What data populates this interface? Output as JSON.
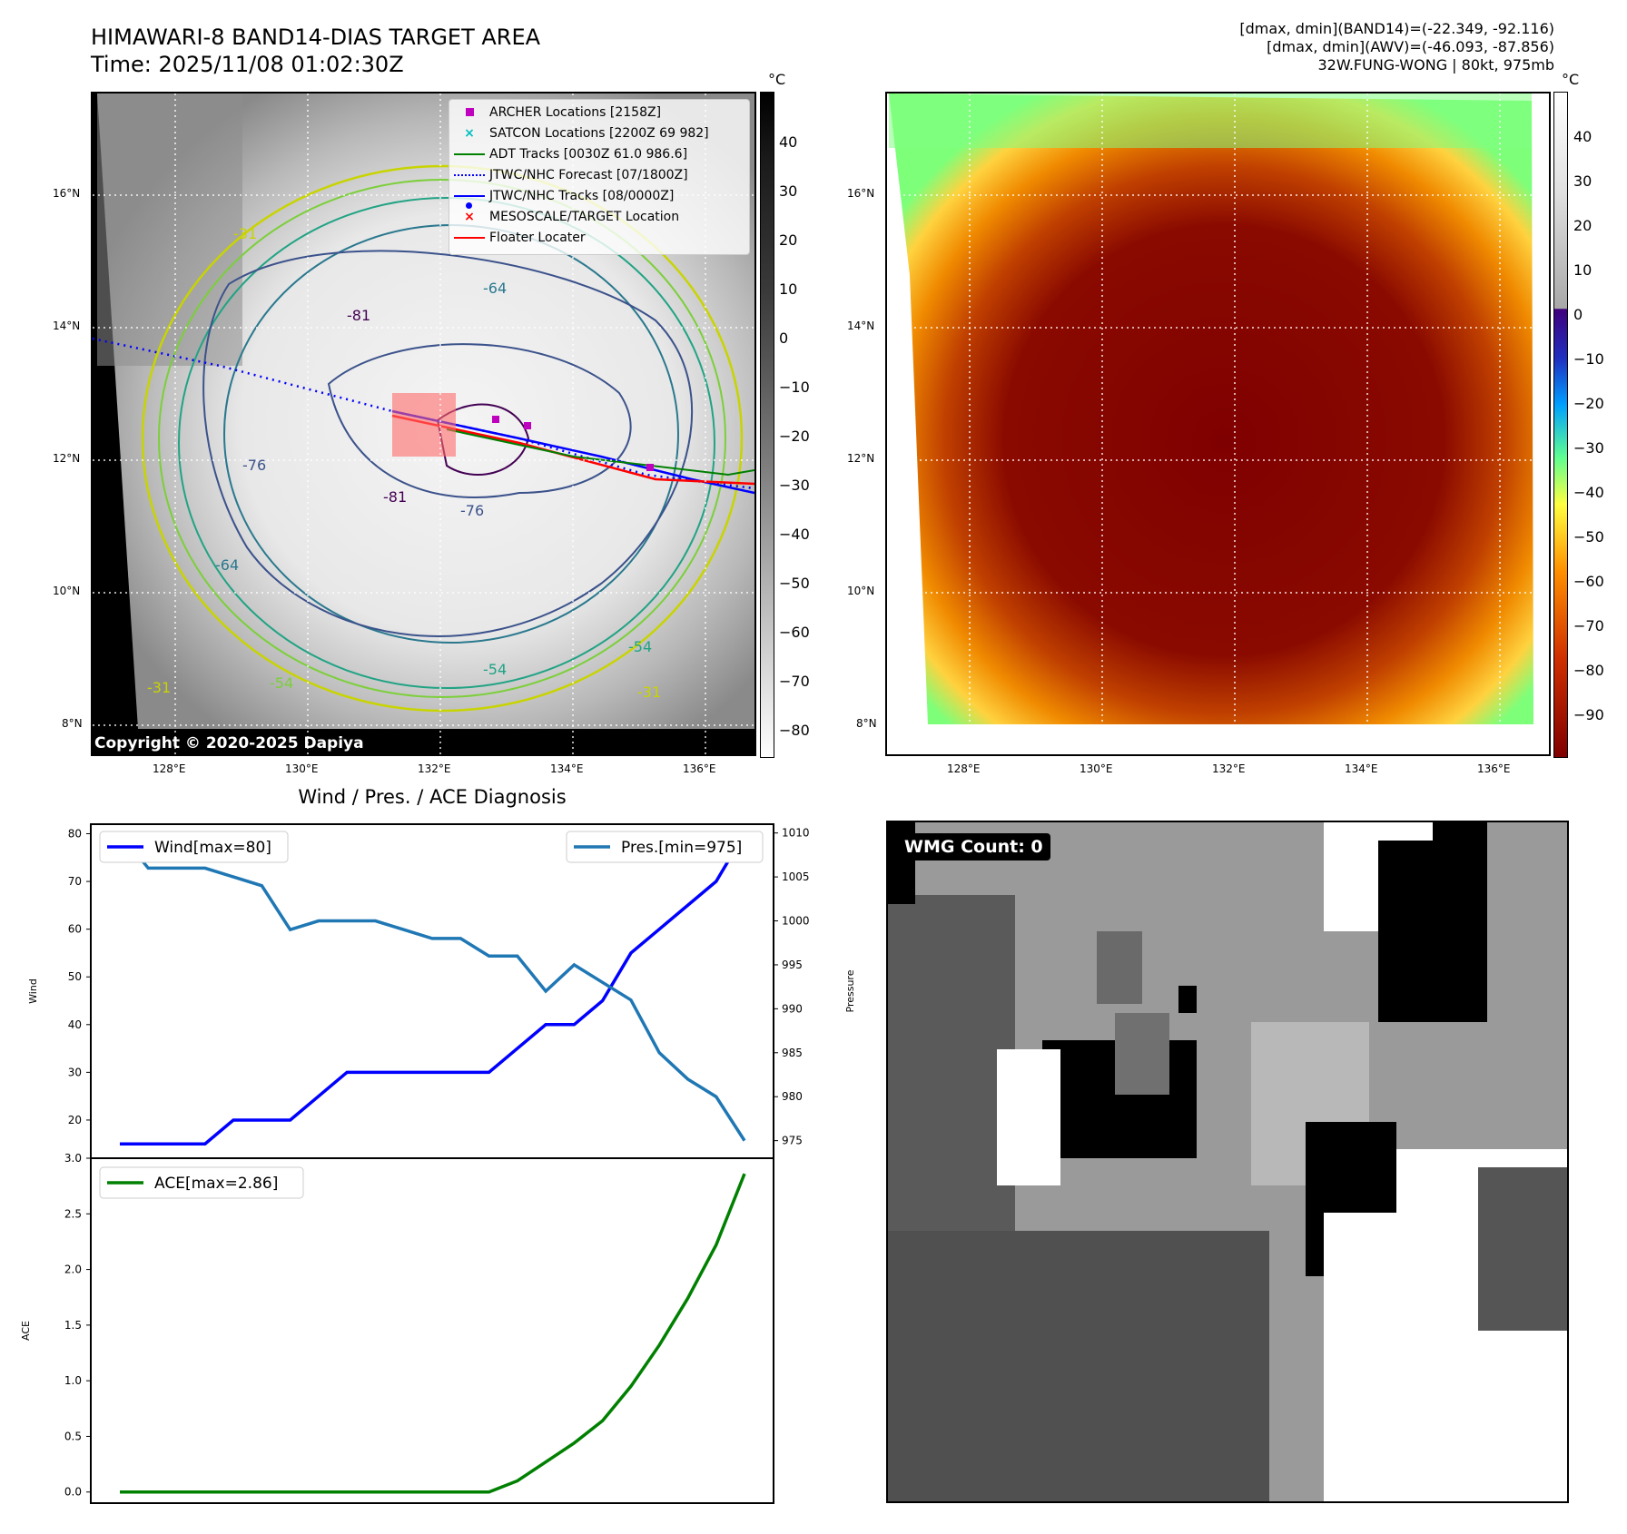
{
  "titles": {
    "main_line1": "HIMAWARI-8 BAND14-DIAS TARGET AREA",
    "main_line2": "Time: 2025/11/08 01:02:30Z",
    "info_line1": "[dmax, dmin](BAND14)=(-22.349, -92.116)",
    "info_line2": "[dmax, dmin](AWV)=(-46.093, -87.856)",
    "info_line3": "32W.FUNG-WONG | 80kt, 975mb",
    "diag_title": "Wind / Pres. / ACE Diagnosis",
    "copyright": "Copyright © 2020-2025 Dapiya",
    "wmg_label": "WMG Count: 0",
    "unit": "°C"
  },
  "map_axes": {
    "lat_labels": [
      "16°N",
      "14°N",
      "12°N",
      "10°N",
      "8°N"
    ],
    "lon_labels": [
      "128°E",
      "130°E",
      "132°E",
      "134°E",
      "136°E"
    ]
  },
  "legend": {
    "items": [
      {
        "label": "ARCHER Locations [2158Z]",
        "color": "#bf00bf",
        "symbol": "square"
      },
      {
        "label": "SATCON Locations [2200Z 69 982]",
        "color": "#00bfbf",
        "symbol": "x"
      },
      {
        "label": "ADT Tracks [0030Z 61.0 986.6]",
        "color": "#008000",
        "symbol": "line"
      },
      {
        "label": "JTWC/NHC Forecast [07/1800Z]",
        "color": "#0000ff",
        "symbol": "dotted"
      },
      {
        "label": "JTWC/NHC Tracks [08/0000Z]",
        "color": "#0000ff",
        "symbol": "line-dot"
      },
      {
        "label": "MESOSCALE/TARGET Location",
        "color": "#ff0000",
        "symbol": "x"
      },
      {
        "label": "Floater Locater",
        "color": "#ff0000",
        "symbol": "line"
      }
    ]
  },
  "contour_labels": [
    "-31",
    "-31",
    "-54",
    "-64",
    "-64",
    "-76",
    "-76",
    "-81",
    "-81",
    "-54",
    "-54",
    "-31"
  ],
  "colorbar_gray": {
    "ticks": [
      "40",
      "30",
      "20",
      "10",
      "0",
      "−10",
      "−20",
      "−30",
      "−40",
      "−50",
      "−60",
      "−70",
      "−80"
    ]
  },
  "colorbar_color": {
    "ticks": [
      "40",
      "30",
      "20",
      "10",
      "0",
      "−10",
      "−20",
      "−30",
      "−40",
      "−50",
      "−60",
      "−70",
      "−80",
      "−90"
    ]
  },
  "chart_data": [
    {
      "type": "line",
      "title": "Wind / Pres. / ACE Diagnosis",
      "x": [
        0,
        1,
        2,
        3,
        4,
        5,
        6,
        7,
        8,
        9,
        10,
        11,
        12,
        13,
        14,
        15,
        16,
        17,
        18,
        19,
        20,
        21,
        22
      ],
      "series": [
        {
          "name": "Wind[max=80]",
          "axis": "left",
          "color": "#0000ff",
          "values": [
            15,
            15,
            15,
            15,
            20,
            20,
            20,
            25,
            30,
            30,
            30,
            30,
            30,
            30,
            35,
            40,
            40,
            45,
            55,
            60,
            65,
            70,
            80
          ]
        },
        {
          "name": "Pres.[min=975]",
          "axis": "right",
          "color": "#1f77b4",
          "values": [
            1010,
            1006,
            1006,
            1006,
            1005,
            1004,
            999,
            1000,
            1000,
            1000,
            999,
            998,
            998,
            996,
            996,
            992,
            995,
            993,
            991,
            985,
            982,
            980,
            975
          ]
        }
      ],
      "ylabel": "Wind",
      "y2label": "Pressure",
      "ylim": [
        12,
        82
      ],
      "y2lim": [
        973,
        1011
      ],
      "yticks": [
        20,
        30,
        40,
        50,
        60,
        70,
        80
      ],
      "y2ticks": [
        975,
        980,
        985,
        990,
        995,
        1000,
        1005,
        1010
      ],
      "legend_left": "upper left",
      "legend_right": "upper right"
    },
    {
      "type": "line",
      "x": [
        0,
        1,
        2,
        3,
        4,
        5,
        6,
        7,
        8,
        9,
        10,
        11,
        12,
        13,
        14,
        15,
        16,
        17,
        18,
        19,
        20,
        21,
        22
      ],
      "series": [
        {
          "name": "ACE[max=2.86]",
          "color": "#008000",
          "values": [
            0,
            0,
            0,
            0,
            0,
            0,
            0,
            0,
            0,
            0,
            0,
            0,
            0,
            0,
            0.1,
            0.27,
            0.44,
            0.64,
            0.95,
            1.32,
            1.74,
            2.22,
            2.86
          ]
        }
      ],
      "ylabel": "ACE",
      "ylim": [
        -0.1,
        3.0
      ],
      "yticks": [
        "0.0",
        "0.5",
        "1.0",
        "1.5",
        "2.0",
        "2.5",
        "3.0"
      ],
      "legend": "upper left"
    }
  ]
}
